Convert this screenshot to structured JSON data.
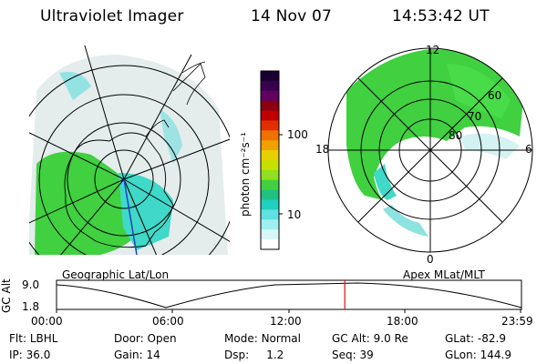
{
  "header": {
    "title": "Ultraviolet Imager",
    "date": "14 Nov 07",
    "time": "14:53:42 UT"
  },
  "colorbar": {
    "unit_label": "photon cm⁻²s⁻¹",
    "ticks": [
      "100",
      "10"
    ],
    "colors": [
      "#1a0030",
      "#3a0050",
      "#600060",
      "#8a0010",
      "#c00000",
      "#e03000",
      "#f07000",
      "#f0a000",
      "#e8d000",
      "#c8e000",
      "#90e020",
      "#40d040",
      "#20c080",
      "#20d0c0",
      "#60e0e0",
      "#a0f0f0",
      "#d8f8f8",
      "#ffffff"
    ]
  },
  "left_map": {
    "caption": "Geographic Lat/Lon"
  },
  "right_map": {
    "caption": "Apex MLat/MLT",
    "mlt_labels": {
      "top": "12",
      "left": "18",
      "right": "6",
      "bottom": "0"
    },
    "lat_labels": [
      "60",
      "70",
      "80"
    ]
  },
  "timeline": {
    "ylabel": "GC Alt",
    "yticks": [
      "9.0",
      "1.8"
    ],
    "xticks": [
      "00:00",
      "06:00",
      "12:00",
      "18:00",
      "23:59"
    ],
    "current_fraction": 0.62
  },
  "info": {
    "flt_label": "Flt:",
    "flt_value": "LBHL",
    "ip_label": "IP:",
    "ip_value": "36.0",
    "door_label": "Door:",
    "door_value": "Open",
    "gain_label": "Gain:",
    "gain_value": "14",
    "mode_label": "Mode:",
    "mode_value": "Normal",
    "dsp_label": "Dsp:",
    "dsp_value": "1.2",
    "gcalt_label": "GC Alt:",
    "gcalt_value": "9.0 Re",
    "seq_label": "Seq:",
    "seq_value": "39",
    "glat_label": "GLat:",
    "glat_value": "-82.9",
    "glon_label": "GLon:",
    "glon_value": "144.9"
  },
  "colors": {
    "aurora_green": "#40d040",
    "aurora_cyan": "#40d8d0",
    "haze": "#d8e4e4",
    "marker": "#e02020"
  }
}
